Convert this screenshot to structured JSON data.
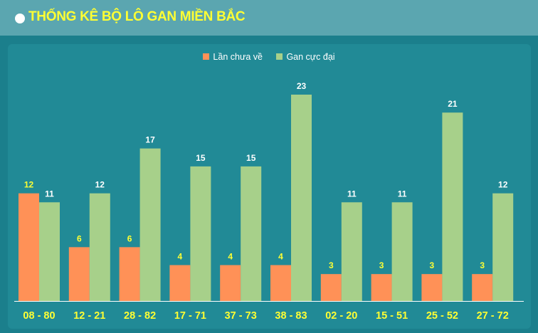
{
  "header": {
    "title": "THỐNG KÊ BỘ LÔ GAN MIỀN BẮC"
  },
  "colors": {
    "series_1": "#ff9157",
    "series_2": "#a7d08a",
    "value_label_1": "#ffff33",
    "value_label_2": "#ffffff",
    "tick_label": "#ffff33"
  },
  "chart_data": {
    "type": "bar",
    "title": "",
    "xlabel": "",
    "ylabel": "",
    "ylim": [
      0,
      23
    ],
    "grid": false,
    "legend_position": "top-center",
    "categories": [
      "08 - 80",
      "12 - 21",
      "28 - 82",
      "17 - 71",
      "37 - 73",
      "38 - 83",
      "02 - 20",
      "15 - 51",
      "25 - 52",
      "27 - 72"
    ],
    "series": [
      {
        "name": "Lần chưa về",
        "values": [
          12,
          6,
          6,
          4,
          4,
          4,
          3,
          3,
          3,
          3
        ]
      },
      {
        "name": "Gan cực đại",
        "values": [
          11,
          12,
          17,
          15,
          15,
          23,
          11,
          11,
          21,
          12
        ]
      }
    ]
  }
}
